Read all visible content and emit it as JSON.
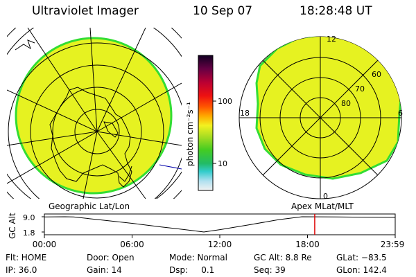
{
  "header": {
    "instrument": "Ultraviolet Imager",
    "date": "10 Sep 07",
    "time": "18:28:48 UT"
  },
  "colorbar": {
    "unit_label": "photon cm⁻²s⁻¹",
    "ticks": [
      "100",
      "10"
    ]
  },
  "left_panel": {
    "title": "Geographic Lat/Lon",
    "fill_color": "#e6f221",
    "edge_color": "#33dd33"
  },
  "right_panel": {
    "title": "Apex MLat/MLT",
    "mlt_labels": {
      "noon": "12",
      "dusk": "18",
      "dawn": "6",
      "midnight": "0"
    },
    "lat_labels": [
      "60",
      "70",
      "80"
    ]
  },
  "altitude_plot": {
    "ylabel": "GC Alt",
    "yticks": [
      "9.0",
      "1.8"
    ],
    "xticks": [
      "00:00",
      "06:00",
      "12:00",
      "18:00",
      "23:59"
    ],
    "marker_time_hours": 18.48,
    "marker_color": "#dd0000",
    "series": {
      "hours": [
        0,
        1.4,
        2,
        4,
        6,
        8,
        10,
        10.9,
        12,
        14,
        16,
        17.6,
        20,
        23.98
      ],
      "alt_re": [
        8.9,
        9.0,
        8.9,
        7.4,
        5.9,
        4.2,
        2.6,
        1.8,
        2.9,
        5.2,
        7.6,
        9.0,
        8.9,
        8.7
      ]
    }
  },
  "footer": {
    "flt": "Flt: HOME",
    "door": "Door: Open",
    "mode": "Mode: Normal",
    "gc_alt": "GC Alt: 8.8 Re",
    "glat": "GLat: −83.5",
    "ip": "IP: 36.0",
    "gain": "Gain: 14",
    "dsp": "Dsp:     0.1",
    "seq": "Seq: 39",
    "glon": "GLon: 142.4"
  }
}
